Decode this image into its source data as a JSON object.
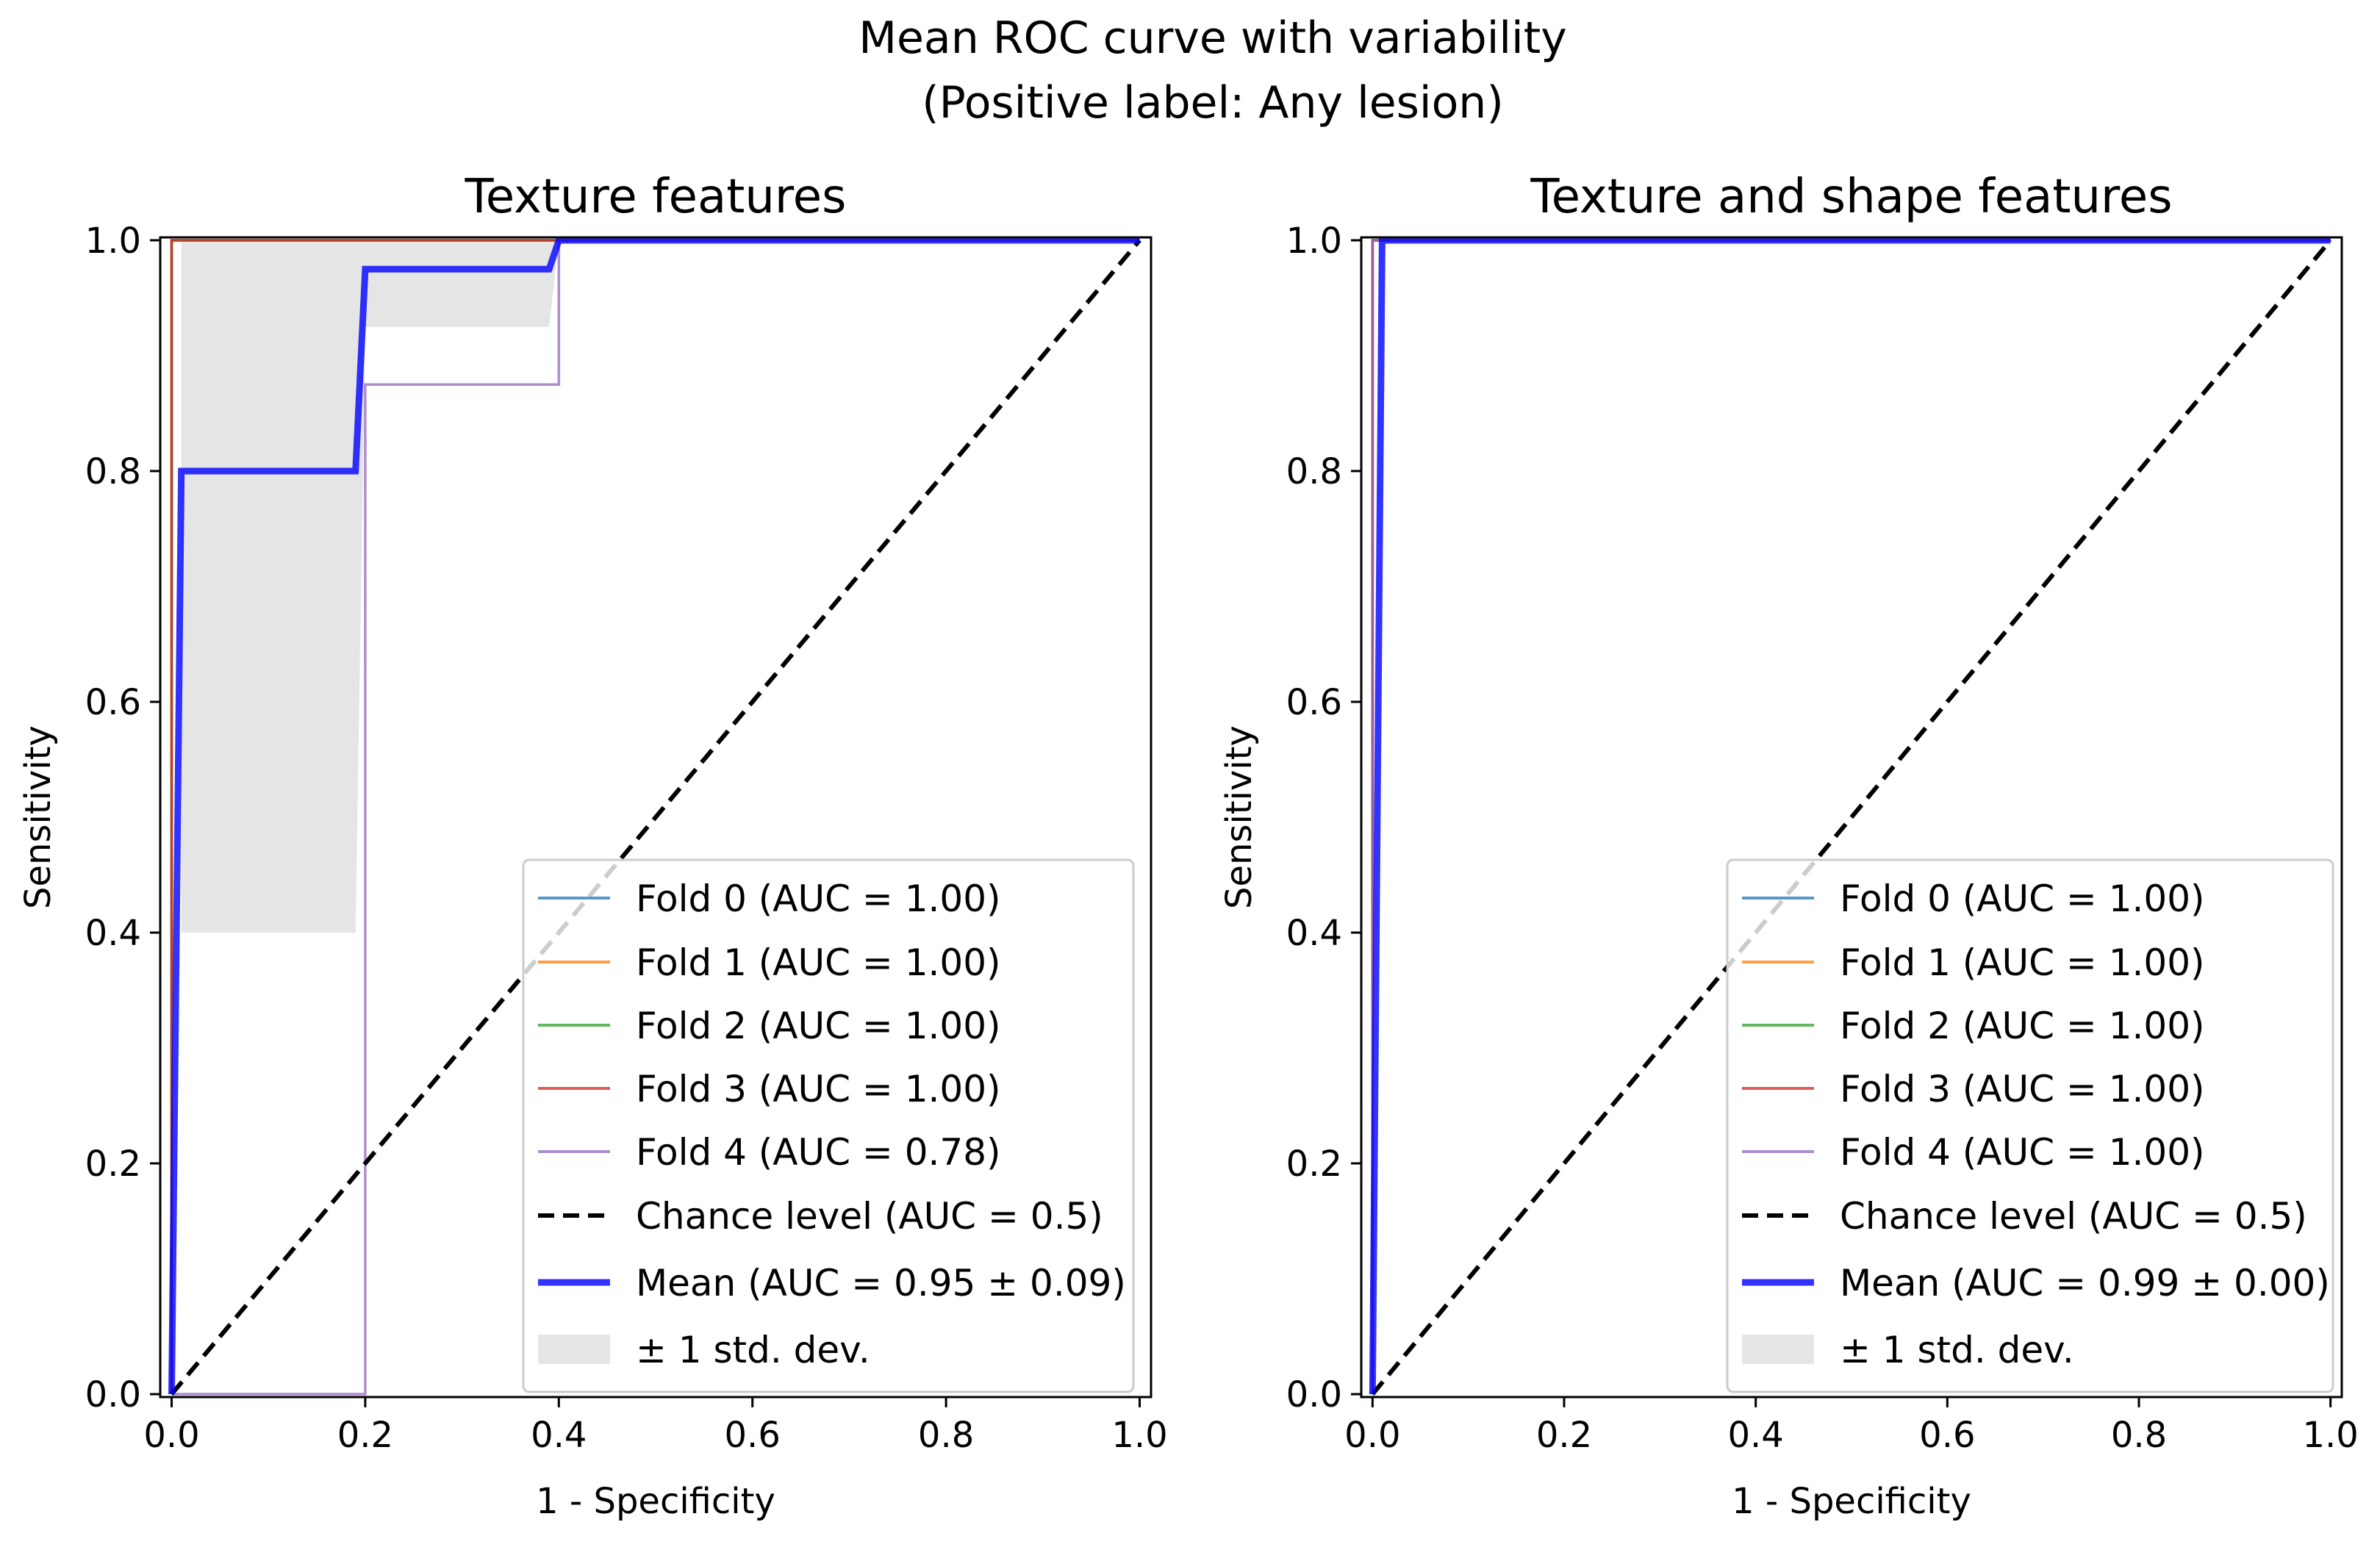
{
  "figure": {
    "title_line1": "Mean ROC curve with variability",
    "title_line2": "(Positive label: Any lesion)"
  },
  "colors": {
    "fold0": "#1f77b4",
    "fold1": "#ff7f0e",
    "fold2": "#2ca02c",
    "fold3": "#d62728",
    "fold4": "#9467bd",
    "chance": "#000000",
    "mean": "#0000ff",
    "std_fill": "#bdbdbd"
  },
  "chart_data": [
    {
      "type": "line",
      "title": "Texture features",
      "xlabel": "1 - Specificity",
      "ylabel": "Sensitivity",
      "xlim": [
        0,
        1
      ],
      "ylim": [
        0,
        1
      ],
      "xticks": [
        "0.0",
        "0.2",
        "0.4",
        "0.6",
        "0.8",
        "1.0"
      ],
      "yticks": [
        "0.0",
        "0.2",
        "0.4",
        "0.6",
        "0.8",
        "1.0"
      ],
      "legend_position": "lower-right",
      "series": [
        {
          "name": "Fold 0 (AUC = 1.00)",
          "color_key": "fold0",
          "x": [
            0,
            0,
            1
          ],
          "y": [
            0,
            1,
            1
          ]
        },
        {
          "name": "Fold 1 (AUC = 1.00)",
          "color_key": "fold1",
          "x": [
            0,
            0,
            1
          ],
          "y": [
            0,
            1,
            1
          ]
        },
        {
          "name": "Fold 2 (AUC = 1.00)",
          "color_key": "fold2",
          "x": [
            0,
            0,
            1
          ],
          "y": [
            0,
            1,
            1
          ]
        },
        {
          "name": "Fold 3 (AUC = 1.00)",
          "color_key": "fold3",
          "x": [
            0,
            0,
            1
          ],
          "y": [
            0,
            1,
            1
          ]
        },
        {
          "name": "Fold 4 (AUC = 0.78)",
          "color_key": "fold4",
          "x": [
            0,
            0.2,
            0.2,
            0.4,
            0.4,
            1
          ],
          "y": [
            0,
            0,
            0.875,
            0.875,
            1,
            1
          ]
        }
      ],
      "chance": {
        "name": "Chance level (AUC = 0.5)",
        "x": [
          0,
          1
        ],
        "y": [
          0,
          1
        ]
      },
      "mean": {
        "name": "Mean (AUC = 0.95 ± 0.09)",
        "x": [
          0,
          0.01,
          0.19,
          0.2,
          0.39,
          0.4,
          1
        ],
        "y": [
          0,
          0.8,
          0.8,
          0.975,
          0.975,
          1,
          1
        ]
      },
      "std": {
        "name": "± 1 std. dev.",
        "x": [
          0.01,
          0.19,
          0.2,
          0.39,
          0.4,
          1
        ],
        "upper": [
          1,
          1,
          1,
          1,
          1,
          1
        ],
        "lower": [
          0.4,
          0.4,
          0.925,
          0.925,
          1,
          1
        ]
      }
    },
    {
      "type": "line",
      "title": "Texture and shape features",
      "xlabel": "1 - Specificity",
      "ylabel": "Sensitivity",
      "xlim": [
        0,
        1
      ],
      "ylim": [
        0,
        1
      ],
      "xticks": [
        "0.0",
        "0.2",
        "0.4",
        "0.6",
        "0.8",
        "1.0"
      ],
      "yticks": [
        "0.0",
        "0.2",
        "0.4",
        "0.6",
        "0.8",
        "1.0"
      ],
      "legend_position": "lower-right",
      "series": [
        {
          "name": "Fold 0 (AUC = 1.00)",
          "color_key": "fold0",
          "x": [
            0,
            0,
            1
          ],
          "y": [
            0,
            1,
            1
          ]
        },
        {
          "name": "Fold 1 (AUC = 1.00)",
          "color_key": "fold1",
          "x": [
            0,
            0,
            1
          ],
          "y": [
            0,
            1,
            1
          ]
        },
        {
          "name": "Fold 2 (AUC = 1.00)",
          "color_key": "fold2",
          "x": [
            0,
            0,
            1
          ],
          "y": [
            0,
            1,
            1
          ]
        },
        {
          "name": "Fold 3 (AUC = 1.00)",
          "color_key": "fold3",
          "x": [
            0,
            0,
            1
          ],
          "y": [
            0,
            1,
            1
          ]
        },
        {
          "name": "Fold 4 (AUC = 1.00)",
          "color_key": "fold4",
          "x": [
            0,
            0,
            1
          ],
          "y": [
            0,
            1,
            1
          ]
        }
      ],
      "chance": {
        "name": "Chance level (AUC = 0.5)",
        "x": [
          0,
          1
        ],
        "y": [
          0,
          1
        ]
      },
      "mean": {
        "name": "Mean (AUC = 0.99 ± 0.00)",
        "x": [
          0,
          0.01,
          1
        ],
        "y": [
          0,
          1,
          1
        ]
      },
      "std": {
        "name": "± 1 std. dev.",
        "x": [
          0.01,
          1
        ],
        "upper": [
          1,
          1
        ],
        "lower": [
          1,
          1
        ]
      }
    }
  ]
}
